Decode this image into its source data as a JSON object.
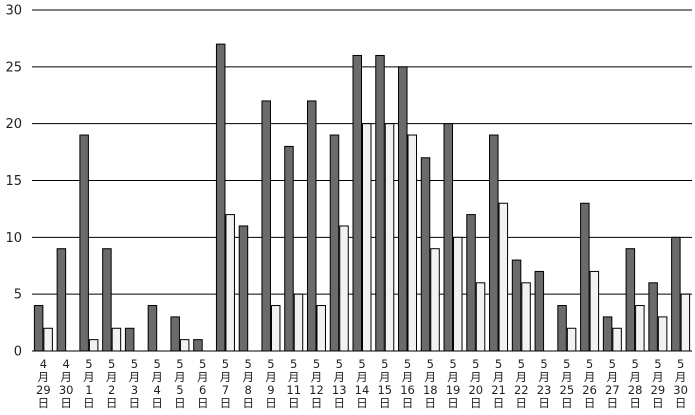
{
  "chart_data": {
    "type": "bar",
    "title": "",
    "xlabel": "",
    "ylabel": "",
    "ylim": [
      0,
      30
    ],
    "yticks": [
      0,
      5,
      10,
      15,
      20,
      25,
      30
    ],
    "grid": true,
    "categories": [
      [
        "4",
        "月",
        "29",
        "日"
      ],
      [
        "4",
        "月",
        "30",
        "日"
      ],
      [
        "5",
        "月",
        "1",
        "日"
      ],
      [
        "5",
        "月",
        "2",
        "日"
      ],
      [
        "5",
        "月",
        "3",
        "日"
      ],
      [
        "5",
        "月",
        "4",
        "日"
      ],
      [
        "5",
        "月",
        "5",
        "日"
      ],
      [
        "5",
        "月",
        "6",
        "日"
      ],
      [
        "5",
        "月",
        "7",
        "日"
      ],
      [
        "5",
        "月",
        "8",
        "日"
      ],
      [
        "5",
        "月",
        "9",
        "日"
      ],
      [
        "5",
        "月",
        "11",
        "日"
      ],
      [
        "5",
        "月",
        "12",
        "日"
      ],
      [
        "5",
        "月",
        "13",
        "日"
      ],
      [
        "5",
        "月",
        "14",
        "日"
      ],
      [
        "5",
        "月",
        "15",
        "日"
      ],
      [
        "5",
        "月",
        "16",
        "日"
      ],
      [
        "5",
        "月",
        "18",
        "日"
      ],
      [
        "5",
        "月",
        "19",
        "日"
      ],
      [
        "5",
        "月",
        "20",
        "日"
      ],
      [
        "5",
        "月",
        "21",
        "日"
      ],
      [
        "5",
        "月",
        "22",
        "日"
      ],
      [
        "5",
        "月",
        "23",
        "日"
      ],
      [
        "5",
        "月",
        "25",
        "日"
      ],
      [
        "5",
        "月",
        "26",
        "日"
      ],
      [
        "5",
        "月",
        "27",
        "日"
      ],
      [
        "5",
        "月",
        "28",
        "日"
      ],
      [
        "5",
        "月",
        "29",
        "日"
      ],
      [
        "5",
        "月",
        "30",
        "日"
      ]
    ],
    "series": [
      {
        "color": "#6b6b6b",
        "values": [
          4,
          9,
          19,
          9,
          2,
          4,
          3,
          1,
          27,
          11,
          22,
          18,
          22,
          19,
          26,
          26,
          25,
          17,
          20,
          12,
          19,
          8,
          7,
          4,
          13,
          3,
          9,
          6,
          10
        ]
      },
      {
        "color": "#f2f2f2",
        "values": [
          2,
          0,
          1,
          2,
          0,
          0,
          1,
          0,
          12,
          0,
          4,
          5,
          4,
          11,
          20,
          20,
          19,
          9,
          10,
          6,
          13,
          6,
          0,
          2,
          7,
          2,
          4,
          3,
          5
        ]
      }
    ]
  }
}
